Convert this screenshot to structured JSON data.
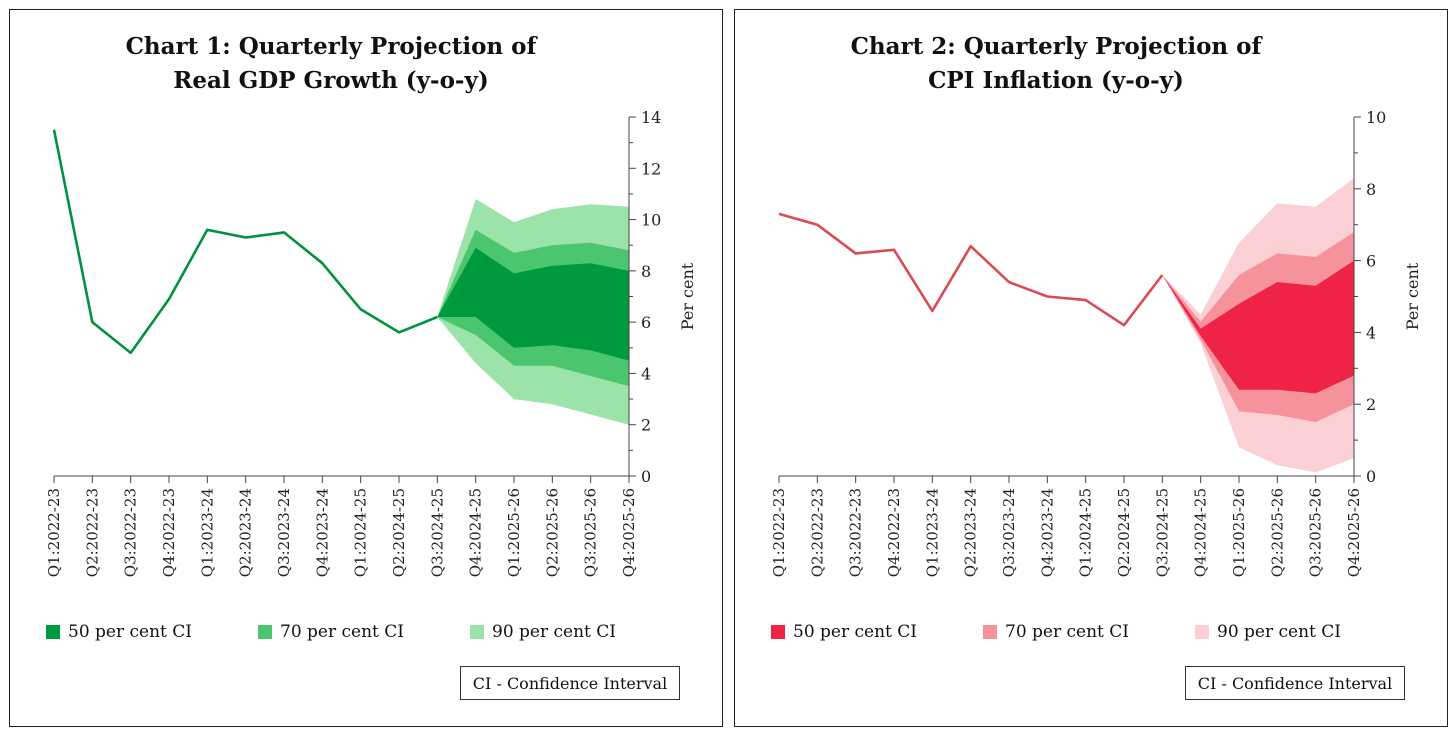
{
  "chart_data": [
    {
      "type": "line",
      "title_lines": [
        "Chart 1: Quarterly Projection of",
        "Real GDP Growth (y-o-y)"
      ],
      "ylabel": "Per cent",
      "ylim": [
        0,
        14
      ],
      "yticks": [
        0,
        2,
        4,
        6,
        8,
        10,
        12,
        14
      ],
      "categories": [
        "Q1:2022-23",
        "Q2:2022-23",
        "Q3:2022-23",
        "Q4:2022-23",
        "Q1:2023-24",
        "Q2:2023-24",
        "Q3:2023-24",
        "Q4:2023-24",
        "Q1:2024-25",
        "Q2:2024-25",
        "Q3:2024-25",
        "Q4:2024-25",
        "Q1:2025-26",
        "Q2:2025-26",
        "Q3:2025-26",
        "Q4:2025-26"
      ],
      "series": [
        {
          "values": [
            13.5,
            6.0,
            4.8,
            6.9,
            9.6,
            9.3,
            9.5,
            8.3,
            6.5,
            5.6,
            6.2,
            null,
            null,
            null,
            null,
            null
          ]
        }
      ],
      "fan_start_index": 10,
      "fan": {
        "ci90": {
          "upper": [
            6.2,
            10.8,
            9.9,
            10.4,
            10.6,
            10.5
          ],
          "lower": [
            6.2,
            4.4,
            3.0,
            2.8,
            2.4,
            2.0
          ]
        },
        "ci70": {
          "upper": [
            6.2,
            9.6,
            8.7,
            9.0,
            9.1,
            8.8
          ],
          "lower": [
            6.2,
            5.5,
            4.3,
            4.3,
            3.9,
            3.5
          ]
        },
        "ci50": {
          "upper": [
            6.2,
            8.9,
            7.9,
            8.2,
            8.3,
            8.0
          ],
          "lower": [
            6.2,
            6.2,
            5.0,
            5.1,
            4.9,
            4.5
          ]
        }
      },
      "colors": {
        "line": "#00923f",
        "ci50": "#009a3e",
        "ci70": "#4cc56f",
        "ci90": "#9be3a8"
      },
      "legend": [
        "50 per cent CI",
        "70 per cent CI",
        "90 per cent CI"
      ],
      "legend_placement": "bottom",
      "note": "CI - Confidence Interval",
      "grid": false
    },
    {
      "type": "line",
      "title_lines": [
        "Chart 2: Quarterly Projection of",
        "CPI Inflation (y-o-y)"
      ],
      "ylabel": "Per cent",
      "ylim": [
        0,
        10
      ],
      "yticks": [
        0,
        2,
        4,
        6,
        8,
        10
      ],
      "categories": [
        "Q1:2022-23",
        "Q2:2022-23",
        "Q3:2022-23",
        "Q4:2022-23",
        "Q1:2023-24",
        "Q2:2023-24",
        "Q3:2023-24",
        "Q4:2023-24",
        "Q1:2024-25",
        "Q2:2024-25",
        "Q3:2024-25",
        "Q4:2024-25",
        "Q1:2025-26",
        "Q2:2025-26",
        "Q3:2025-26",
        "Q4:2025-26"
      ],
      "series": [
        {
          "values": [
            7.3,
            7.0,
            6.2,
            6.3,
            4.6,
            6.4,
            5.4,
            5.0,
            4.9,
            4.2,
            5.6,
            null,
            null,
            null,
            null,
            null
          ]
        }
      ],
      "fan_start_index": 10,
      "fan": {
        "ci90": {
          "upper": [
            5.6,
            4.5,
            6.5,
            7.6,
            7.5,
            8.3
          ],
          "lower": [
            5.6,
            3.7,
            0.8,
            0.3,
            0.1,
            0.5
          ]
        },
        "ci70": {
          "upper": [
            5.6,
            4.3,
            5.6,
            6.2,
            6.1,
            6.8
          ],
          "lower": [
            5.6,
            3.8,
            1.8,
            1.7,
            1.5,
            2.0
          ]
        },
        "ci50": {
          "upper": [
            5.6,
            4.1,
            4.8,
            5.4,
            5.3,
            6.0
          ],
          "lower": [
            5.6,
            3.9,
            2.4,
            2.4,
            2.3,
            2.8
          ]
        }
      },
      "colors": {
        "line": "#d94b55",
        "ci50": "#ef2346",
        "ci70": "#f6929c",
        "ci90": "#fbd0d4"
      },
      "legend": [
        "50 per cent CI",
        "70 per cent CI",
        "90 per cent CI"
      ],
      "legend_placement": "bottom",
      "note": "CI - Confidence Interval",
      "grid": false
    }
  ]
}
